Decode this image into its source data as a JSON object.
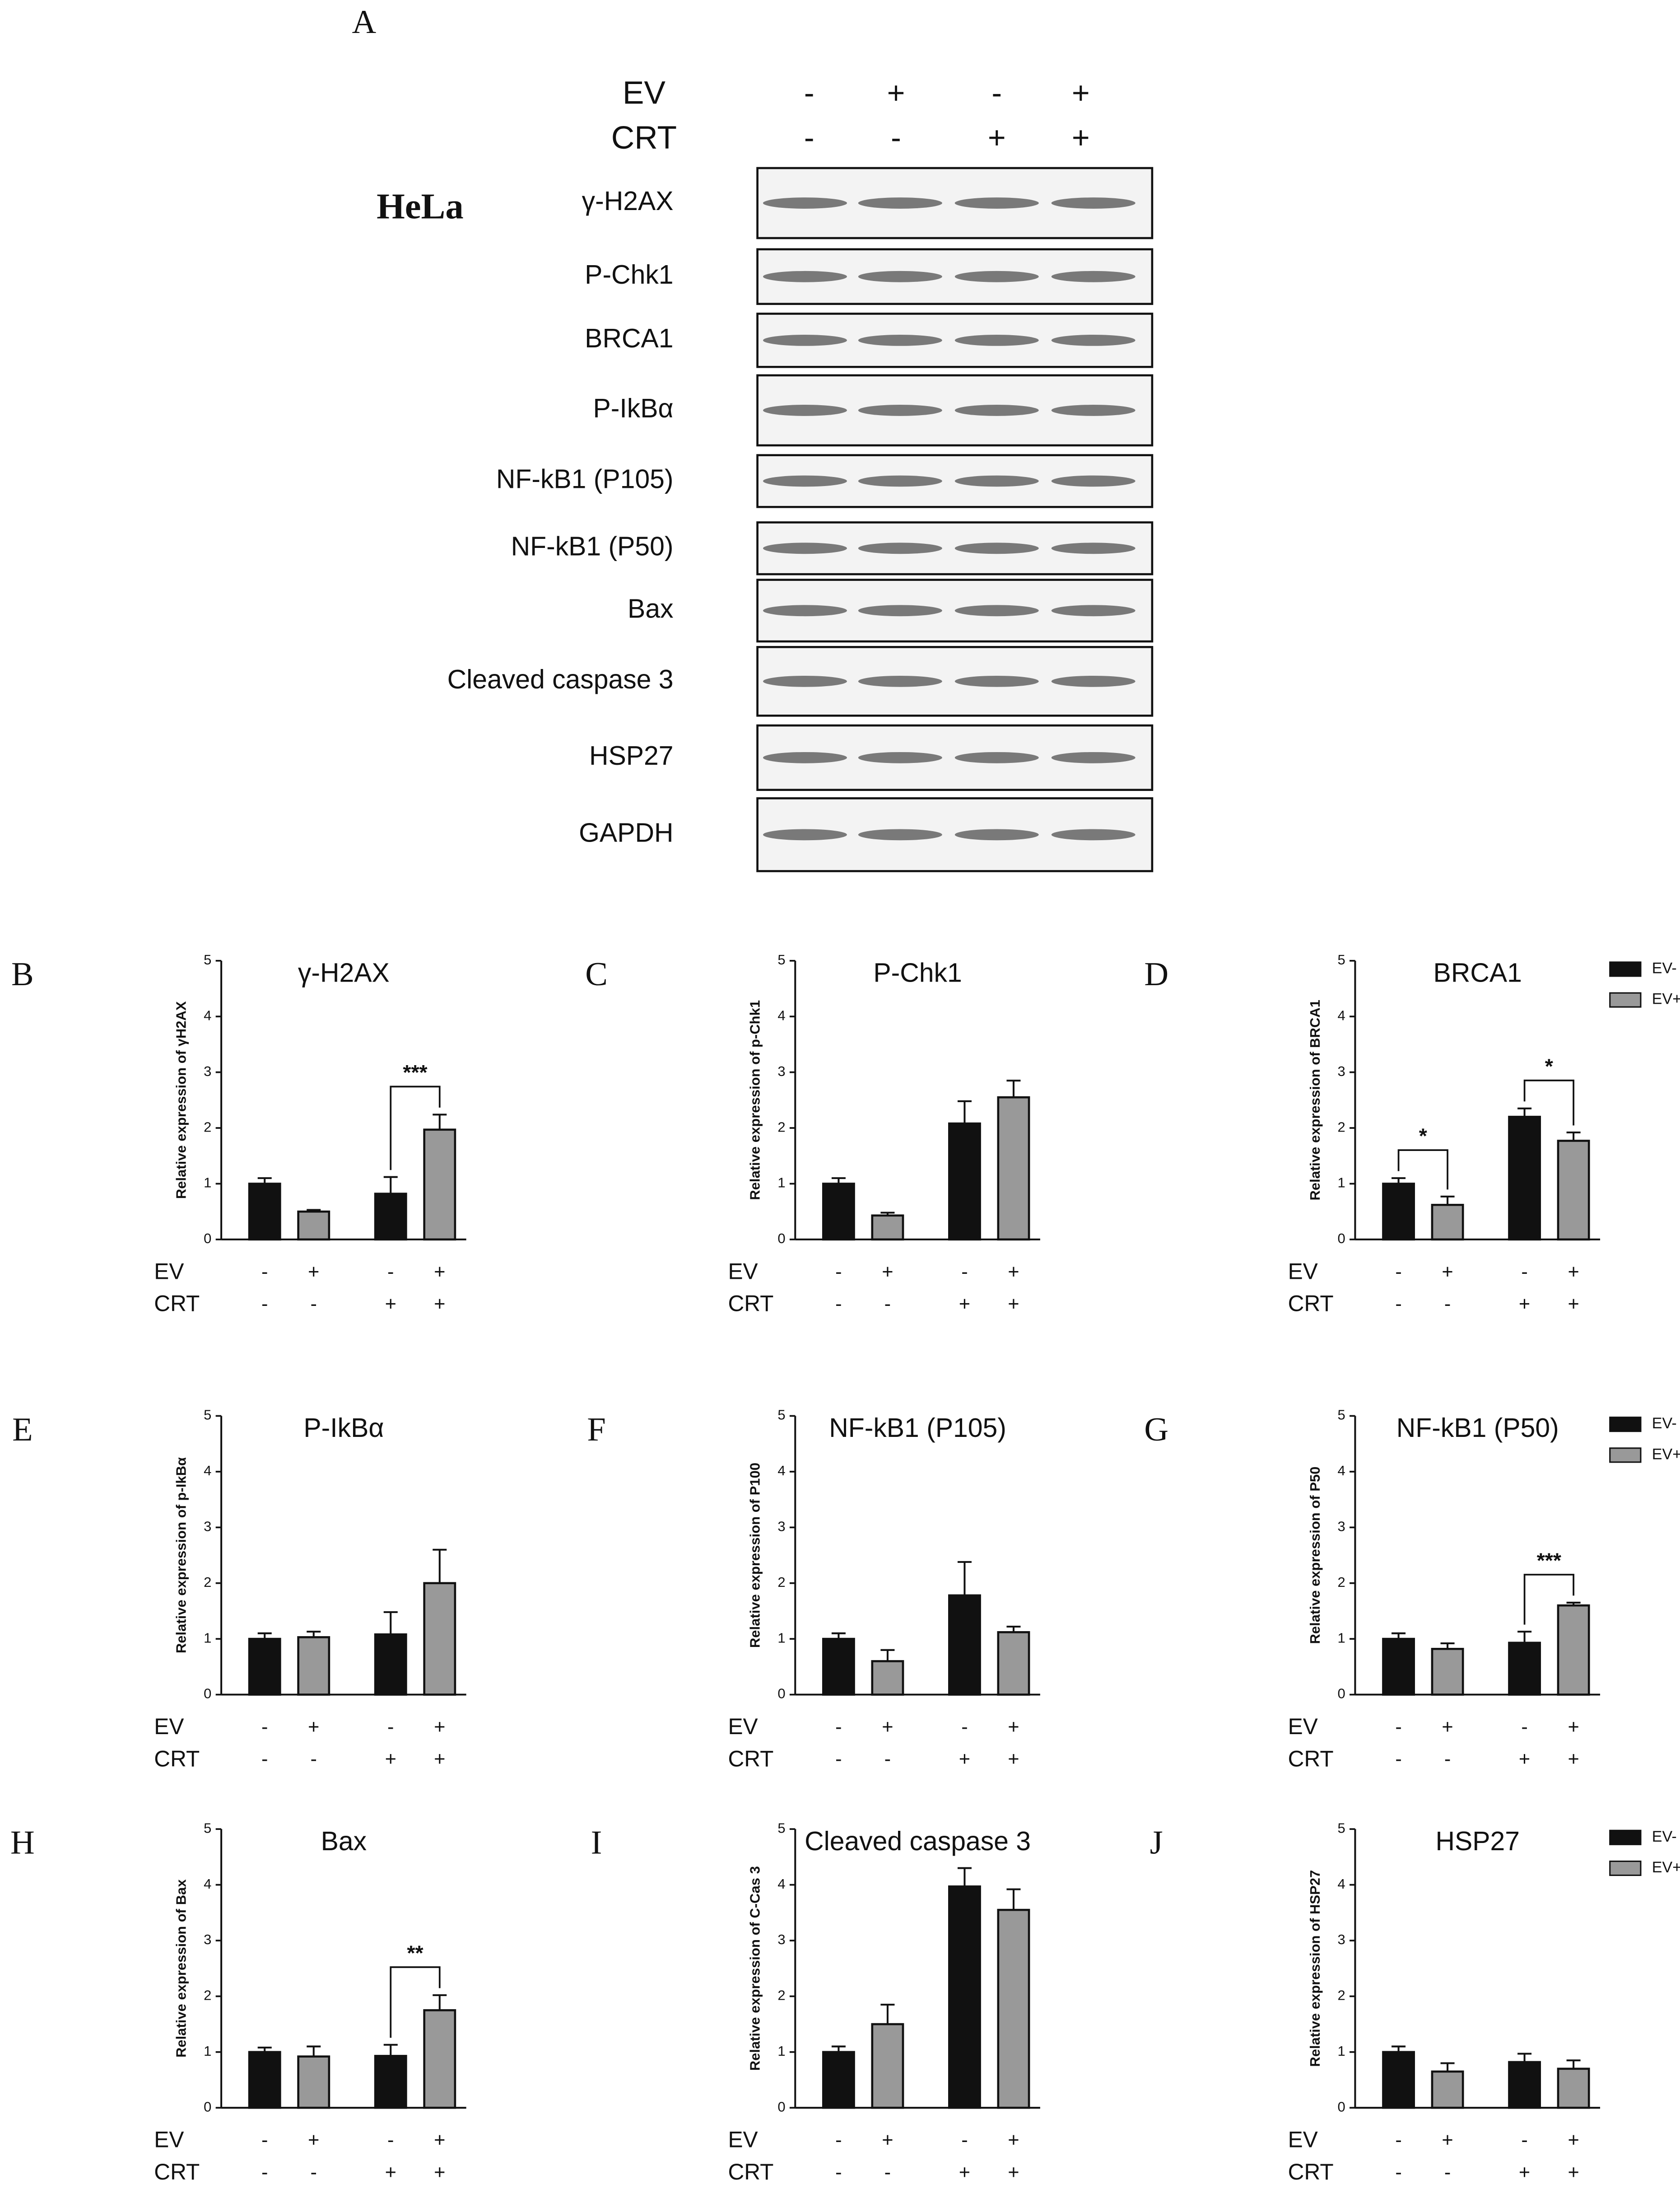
{
  "panel_a": {
    "label": "A",
    "cell_line": "HeLa",
    "conditions": [
      {
        "label": "EV",
        "signs": [
          "-",
          "+",
          "-",
          "+"
        ]
      },
      {
        "label": "CRT",
        "signs": [
          "-",
          "-",
          "+",
          "+"
        ]
      }
    ],
    "blots": [
      "γ-H2AX",
      "P-Chk1",
      "BRCA1",
      "P-IkBα",
      "NF-kB1 (P105)",
      "NF-kB1 (P50)",
      "Bax",
      "Cleaved caspase 3",
      "HSP27",
      "GAPDH"
    ]
  },
  "chart_data": [
    {
      "type": "bar",
      "panel": "B",
      "title": "γ-H2AX",
      "y_label": "Relative expression of γH2AX",
      "ylim": [
        0,
        5
      ],
      "yticks": [
        0,
        1,
        2,
        3,
        4,
        5
      ],
      "values": [
        1.0,
        0.5,
        0.82,
        1.97
      ],
      "errors": [
        0.1,
        0.03,
        0.3,
        0.27
      ],
      "colors": [
        "#111111",
        "#999999",
        "#111111",
        "#999999"
      ],
      "conditions": [
        {
          "label": "EV",
          "signs": [
            "-",
            "+",
            "-",
            "+"
          ]
        },
        {
          "label": "CRT",
          "signs": [
            "-",
            "-",
            "+",
            "+"
          ]
        }
      ],
      "brackets": [
        {
          "label": "***",
          "pair": [
            2,
            3
          ]
        }
      ]
    },
    {
      "type": "bar",
      "panel": "C",
      "title": "P-Chk1",
      "y_label": "Relative expression of p-Chk1",
      "ylim": [
        0,
        5
      ],
      "yticks": [
        0,
        1,
        2,
        3,
        4,
        5
      ],
      "values": [
        1.0,
        0.43,
        2.08,
        2.55
      ],
      "errors": [
        0.1,
        0.05,
        0.4,
        0.3
      ],
      "colors": [
        "#111111",
        "#999999",
        "#111111",
        "#999999"
      ],
      "conditions": [
        {
          "label": "EV",
          "signs": [
            "-",
            "+",
            "-",
            "+"
          ]
        },
        {
          "label": "CRT",
          "signs": [
            "-",
            "-",
            "+",
            "+"
          ]
        }
      ]
    },
    {
      "type": "bar",
      "panel": "D",
      "title": "BRCA1",
      "y_label": "Relative expression of BRCA1",
      "ylim": [
        0,
        5
      ],
      "yticks": [
        0,
        1,
        2,
        3,
        4,
        5
      ],
      "values": [
        1.0,
        0.62,
        2.2,
        1.77
      ],
      "errors": [
        0.1,
        0.15,
        0.15,
        0.15
      ],
      "colors": [
        "#111111",
        "#999999",
        "#111111",
        "#999999"
      ],
      "conditions": [
        {
          "label": "EV",
          "signs": [
            "-",
            "+",
            "-",
            "+"
          ]
        },
        {
          "label": "CRT",
          "signs": [
            "-",
            "-",
            "+",
            "+"
          ]
        }
      ],
      "brackets": [
        {
          "label": "*",
          "pair": [
            0,
            1
          ]
        },
        {
          "label": "*",
          "pair": [
            2,
            3
          ]
        }
      ],
      "legend": [
        {
          "name": "EV-",
          "color": "#111111"
        },
        {
          "name": "EV+",
          "color": "#999999"
        }
      ]
    },
    {
      "type": "bar",
      "panel": "E",
      "title": "P-IkBα",
      "y_label": "Relative expression of p-IkBα",
      "ylim": [
        0,
        5
      ],
      "yticks": [
        0,
        1,
        2,
        3,
        4,
        5
      ],
      "values": [
        1.0,
        1.03,
        1.08,
        2.0
      ],
      "errors": [
        0.1,
        0.1,
        0.4,
        0.6
      ],
      "colors": [
        "#111111",
        "#999999",
        "#111111",
        "#999999"
      ],
      "conditions": [
        {
          "label": "EV",
          "signs": [
            "-",
            "+",
            "-",
            "+"
          ]
        },
        {
          "label": "CRT",
          "signs": [
            "-",
            "-",
            "+",
            "+"
          ]
        }
      ]
    },
    {
      "type": "bar",
      "panel": "F",
      "title": "NF-kB1 (P105)",
      "y_label": "Relative expression of P100",
      "ylim": [
        0,
        5
      ],
      "yticks": [
        0,
        1,
        2,
        3,
        4,
        5
      ],
      "values": [
        1.0,
        0.6,
        1.78,
        1.12
      ],
      "errors": [
        0.1,
        0.2,
        0.6,
        0.1
      ],
      "colors": [
        "#111111",
        "#999999",
        "#111111",
        "#999999"
      ],
      "conditions": [
        {
          "label": "EV",
          "signs": [
            "-",
            "+",
            "-",
            "+"
          ]
        },
        {
          "label": "CRT",
          "signs": [
            "-",
            "-",
            "+",
            "+"
          ]
        }
      ]
    },
    {
      "type": "bar",
      "panel": "G",
      "title": "NF-kB1 (P50)",
      "y_label": "Relative expression of P50",
      "ylim": [
        0,
        5
      ],
      "yticks": [
        0,
        1,
        2,
        3,
        4,
        5
      ],
      "values": [
        1.0,
        0.82,
        0.93,
        1.6
      ],
      "errors": [
        0.1,
        0.1,
        0.2,
        0.05
      ],
      "colors": [
        "#111111",
        "#999999",
        "#111111",
        "#999999"
      ],
      "conditions": [
        {
          "label": "EV",
          "signs": [
            "-",
            "+",
            "-",
            "+"
          ]
        },
        {
          "label": "CRT",
          "signs": [
            "-",
            "-",
            "+",
            "+"
          ]
        }
      ],
      "brackets": [
        {
          "label": "***",
          "pair": [
            2,
            3
          ]
        }
      ],
      "legend": [
        {
          "name": "EV-",
          "color": "#111111"
        },
        {
          "name": "EV+",
          "color": "#999999"
        }
      ]
    },
    {
      "type": "bar",
      "panel": "H",
      "title": "Bax",
      "y_label": "Relative expression of Bax",
      "ylim": [
        0,
        5
      ],
      "yticks": [
        0,
        1,
        2,
        3,
        4,
        5
      ],
      "values": [
        1.0,
        0.92,
        0.93,
        1.75
      ],
      "errors": [
        0.08,
        0.18,
        0.2,
        0.27
      ],
      "colors": [
        "#111111",
        "#999999",
        "#111111",
        "#999999"
      ],
      "conditions": [
        {
          "label": "EV",
          "signs": [
            "-",
            "+",
            "-",
            "+"
          ]
        },
        {
          "label": "CRT",
          "signs": [
            "-",
            "-",
            "+",
            "+"
          ]
        }
      ],
      "brackets": [
        {
          "label": "**",
          "pair": [
            2,
            3
          ]
        }
      ]
    },
    {
      "type": "bar",
      "panel": "I",
      "title": "Cleaved caspase 3",
      "y_label": "Relative expression of C-Cas 3",
      "ylim": [
        0,
        5
      ],
      "yticks": [
        0,
        1,
        2,
        3,
        4,
        5
      ],
      "values": [
        1.0,
        1.5,
        3.97,
        3.55
      ],
      "errors": [
        0.1,
        0.35,
        0.33,
        0.37
      ],
      "colors": [
        "#111111",
        "#999999",
        "#111111",
        "#999999"
      ],
      "conditions": [
        {
          "label": "EV",
          "signs": [
            "-",
            "+",
            "-",
            "+"
          ]
        },
        {
          "label": "CRT",
          "signs": [
            "-",
            "-",
            "+",
            "+"
          ]
        }
      ]
    },
    {
      "type": "bar",
      "panel": "J",
      "title": "HSP27",
      "y_label": "Relative expression of HSP27",
      "ylim": [
        0,
        5
      ],
      "yticks": [
        0,
        1,
        2,
        3,
        4,
        5
      ],
      "values": [
        1.0,
        0.65,
        0.82,
        0.7
      ],
      "errors": [
        0.1,
        0.15,
        0.15,
        0.15
      ],
      "colors": [
        "#111111",
        "#999999",
        "#111111",
        "#999999"
      ],
      "conditions": [
        {
          "label": "EV",
          "signs": [
            "-",
            "+",
            "-",
            "+"
          ]
        },
        {
          "label": "CRT",
          "signs": [
            "-",
            "-",
            "+",
            "+"
          ]
        }
      ],
      "legend": [
        {
          "name": "EV-",
          "color": "#111111"
        },
        {
          "name": "EV+",
          "color": "#999999"
        }
      ]
    }
  ]
}
